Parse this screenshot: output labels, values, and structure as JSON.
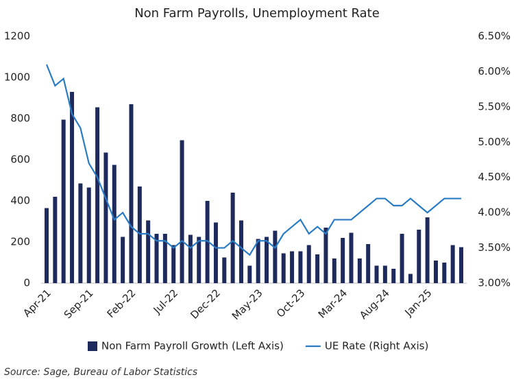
{
  "chart_data": {
    "type": "bar_line",
    "title": "Non Farm Payrolls, Unemployment Rate",
    "source": "Source: Sage, Bureau of Labor Statistics",
    "categories": [
      "Apr-21",
      null,
      null,
      null,
      null,
      "Sep-21",
      null,
      null,
      null,
      null,
      "Feb-22",
      null,
      null,
      null,
      null,
      "Jul-22",
      null,
      null,
      null,
      null,
      "Dec-22",
      null,
      null,
      null,
      null,
      "May-23",
      null,
      null,
      null,
      null,
      "Oct-23",
      null,
      null,
      null,
      null,
      "Mar-24",
      null,
      null,
      null,
      null,
      "Aug-24",
      null,
      null,
      null,
      null,
      "Jan-25",
      null,
      null,
      null,
      null
    ],
    "series": [
      {
        "name": "Non Farm Payroll Growth (Left Axis)",
        "color": "#1f2a5c",
        "kind": "bar",
        "values": [
          365,
          420,
          795,
          930,
          485,
          465,
          855,
          635,
          575,
          225,
          870,
          470,
          305,
          240,
          240,
          185,
          695,
          235,
          225,
          400,
          295,
          125,
          440,
          305,
          85,
          215,
          225,
          255,
          145,
          155,
          155,
          185,
          140,
          270,
          120,
          220,
          245,
          120,
          190,
          85,
          85,
          70,
          240,
          45,
          260,
          320,
          110,
          100,
          185,
          175
        ]
      },
      {
        "name": "UE Rate (Right Axis)",
        "color": "#2a7bc4",
        "kind": "line",
        "axis": "y2",
        "values": [
          6.1,
          5.8,
          5.9,
          5.4,
          5.2,
          4.7,
          4.5,
          4.2,
          3.9,
          4.0,
          3.8,
          3.7,
          3.7,
          3.6,
          3.6,
          3.5,
          3.6,
          3.5,
          3.6,
          3.6,
          3.5,
          3.5,
          3.6,
          3.5,
          3.4,
          3.6,
          3.6,
          3.5,
          3.7,
          3.8,
          3.9,
          3.7,
          3.8,
          3.7,
          3.9,
          3.9,
          3.9,
          4.0,
          4.1,
          4.2,
          4.2,
          4.1,
          4.1,
          4.2,
          4.1,
          4.0,
          4.1,
          4.2,
          4.2,
          4.2
        ]
      }
    ],
    "ylim": [
      0,
      1200
    ],
    "yticks": [
      0,
      200,
      400,
      600,
      800,
      1000,
      1200
    ],
    "y2lim": [
      3.0,
      6.5
    ],
    "y2ticks": [
      {
        "value": 3.0,
        "label": "3.00%"
      },
      {
        "value": 3.5,
        "label": "3.50%"
      },
      {
        "value": 4.0,
        "label": "4.00%"
      },
      {
        "value": 4.5,
        "label": "4.50%"
      },
      {
        "value": 5.0,
        "label": "5.00%"
      },
      {
        "value": 5.5,
        "label": "5.50%"
      },
      {
        "value": 6.0,
        "label": "6.00%"
      },
      {
        "value": 6.5,
        "label": "6.50%"
      }
    ],
    "grid": false
  }
}
